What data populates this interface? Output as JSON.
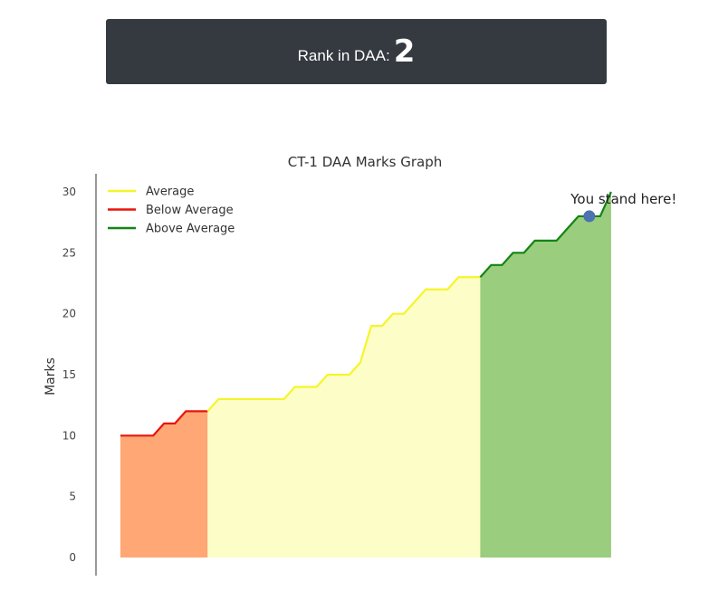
{
  "rank": {
    "label": "Rank in DAA:",
    "value": "2"
  },
  "chart_data": {
    "type": "line",
    "title": "CT-1 DAA Marks Graph",
    "xlabel": "",
    "ylabel": "Marks",
    "ylim": [
      0,
      30
    ],
    "yticks": [
      "0",
      "5",
      "10",
      "15",
      "20",
      "25",
      "30"
    ],
    "xlim": [
      0,
      47
    ],
    "legend_position": "top-left",
    "grid": false,
    "series": [
      {
        "name": "Below Average",
        "color": "#e8140c",
        "fill": "#ffa775",
        "x": [
          0,
          1,
          2,
          3,
          4,
          5,
          6,
          7,
          8
        ],
        "values": [
          10,
          10,
          10,
          10,
          11,
          11,
          12,
          12,
          12
        ]
      },
      {
        "name": "Average",
        "color": "#f5f52a",
        "fill": "#fdfdc8",
        "x": [
          8,
          9,
          10,
          11,
          12,
          13,
          14,
          15,
          16,
          17,
          18,
          19,
          20,
          21,
          22,
          23,
          24,
          25,
          26,
          27,
          28,
          29,
          30,
          31,
          32,
          33
        ],
        "values": [
          12,
          13,
          13,
          13,
          13,
          13,
          13,
          13,
          14,
          14,
          14,
          15,
          15,
          15,
          16,
          19,
          19,
          20,
          20,
          21,
          22,
          22,
          22,
          23,
          23,
          23
        ]
      },
      {
        "name": "Above Average",
        "color": "#138413",
        "fill": "#9acd7d",
        "x": [
          33,
          34,
          35,
          36,
          37,
          38,
          39,
          40,
          41,
          42,
          43,
          44,
          45
        ],
        "values": [
          23,
          24,
          24,
          25,
          25,
          26,
          26,
          26,
          27,
          28,
          28,
          28,
          30
        ]
      }
    ],
    "annotation": {
      "text": "You stand here!",
      "x": 43,
      "y": 28,
      "marker_color": "#4c72b0"
    }
  }
}
